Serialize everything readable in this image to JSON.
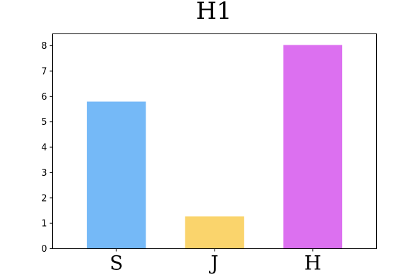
{
  "chart_data": {
    "type": "bar",
    "title": "H1",
    "categories": [
      "S",
      "J",
      "H"
    ],
    "values": [
      5.8,
      1.27,
      8.03
    ],
    "colors": [
      "#75b9f7",
      "#fad46c",
      "#dc70f0"
    ],
    "xlabel": "",
    "ylabel": "",
    "ylim": [
      0,
      8.47
    ],
    "yticks": [
      0,
      1,
      2,
      3,
      4,
      5,
      6,
      7,
      8
    ],
    "grid": false,
    "legend": "none"
  }
}
